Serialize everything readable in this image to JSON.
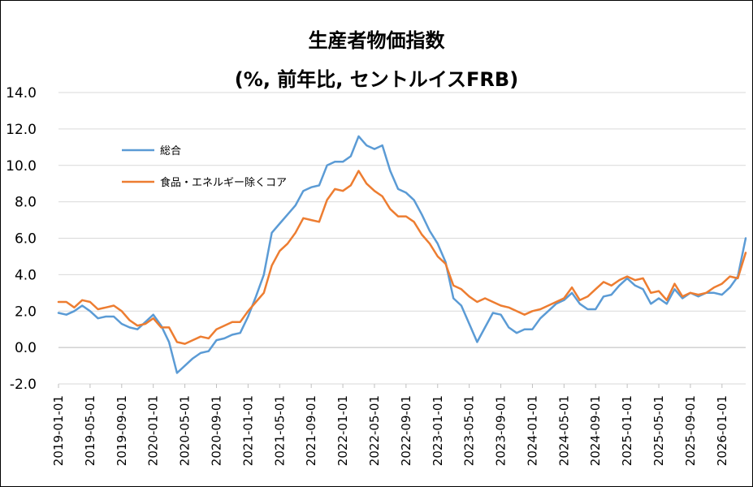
{
  "chart_data": {
    "type": "line",
    "title": "生産者物価指数",
    "subtitle": "(%, 前年比, セントルイスFRB)",
    "ylim": [
      -2.0,
      14.0
    ],
    "yticks": [
      "14.0",
      "12.0",
      "10.0",
      "8.0",
      "6.0",
      "4.0",
      "2.0",
      "0.0",
      "-2.0"
    ],
    "xticks": [
      "2019-01-01",
      "2019-05-01",
      "2019-09-01",
      "2020-01-01",
      "2020-05-01",
      "2020-09-01",
      "2021-01-01",
      "2021-05-01",
      "2021-09-01",
      "2022-01-01",
      "2022-05-01",
      "2022-09-01",
      "2023-01-01",
      "2023-05-01",
      "2023-09-01",
      "2024-01-01",
      "2024-05-01",
      "2024-09-01",
      "2025-01-01",
      "2025-05-01",
      "2025-09-01",
      "2026-01-01"
    ],
    "x_start": "2019-01-01",
    "x_end": "2026-04-01",
    "grid": true,
    "legend_position": "upper-left",
    "series": [
      {
        "name": "総合",
        "color": "#5b9bd5",
        "values": [
          1.9,
          1.8,
          2.0,
          2.3,
          2.0,
          1.6,
          1.7,
          1.7,
          1.3,
          1.1,
          1.0,
          1.4,
          1.8,
          1.2,
          0.3,
          -1.4,
          -1.0,
          -0.6,
          -0.3,
          -0.2,
          0.4,
          0.5,
          0.7,
          0.8,
          1.7,
          2.8,
          4.0,
          6.3,
          6.8,
          7.3,
          7.8,
          8.6,
          8.8,
          8.9,
          10.0,
          10.2,
          10.2,
          10.5,
          11.6,
          11.1,
          10.9,
          11.1,
          9.7,
          8.7,
          8.5,
          8.1,
          7.3,
          6.4,
          5.7,
          4.7,
          2.7,
          2.3,
          1.3,
          0.3,
          1.1,
          1.9,
          1.8,
          1.1,
          0.8,
          1.0,
          1.0,
          1.6,
          2.0,
          2.4,
          2.6,
          3.0,
          2.4,
          2.1,
          2.1,
          2.8,
          2.9,
          3.4,
          3.8,
          3.4,
          3.2,
          2.4,
          2.7,
          2.4,
          3.2,
          2.7,
          3.0,
          2.8,
          3.0,
          3.0,
          2.9,
          3.3,
          3.9,
          6.0
        ]
      },
      {
        "name": "食品・エネルギー除くコア",
        "color": "#ed7d31",
        "values": [
          2.5,
          2.5,
          2.2,
          2.6,
          2.5,
          2.1,
          2.2,
          2.3,
          2.0,
          1.5,
          1.2,
          1.3,
          1.6,
          1.1,
          1.1,
          0.3,
          0.2,
          0.4,
          0.6,
          0.5,
          1.0,
          1.2,
          1.4,
          1.4,
          2.0,
          2.5,
          3.0,
          4.5,
          5.3,
          5.7,
          6.3,
          7.1,
          7.0,
          6.9,
          8.1,
          8.7,
          8.6,
          8.9,
          9.7,
          9.0,
          8.6,
          8.3,
          7.6,
          7.2,
          7.2,
          6.9,
          6.2,
          5.7,
          5.0,
          4.6,
          3.4,
          3.2,
          2.8,
          2.5,
          2.7,
          2.5,
          2.3,
          2.2,
          2.0,
          1.8,
          2.0,
          2.1,
          2.3,
          2.5,
          2.7,
          3.3,
          2.6,
          2.8,
          3.2,
          3.6,
          3.4,
          3.7,
          3.9,
          3.7,
          3.8,
          3.0,
          3.1,
          2.6,
          3.5,
          2.8,
          3.0,
          2.9,
          3.0,
          3.3,
          3.5,
          3.9,
          3.8,
          5.2
        ]
      }
    ]
  }
}
